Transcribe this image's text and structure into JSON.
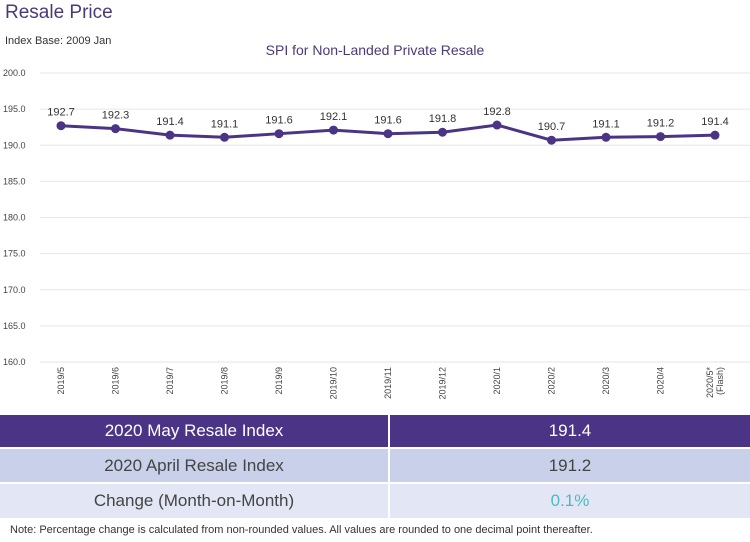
{
  "title": "Resale Price",
  "index_base": "Index Base: 2009 Jan",
  "chart_data": {
    "type": "line",
    "title": "SPI for Non-Landed Private Resale",
    "categories": [
      "2019/5",
      "2019/6",
      "2019/7",
      "2019/8",
      "2019/9",
      "2019/10",
      "2019/11",
      "2019/12",
      "2020/1",
      "2020/2",
      "2020/3",
      "2020/4",
      "2020/5* (Flash)"
    ],
    "values": [
      192.7,
      192.3,
      191.4,
      191.1,
      191.6,
      192.1,
      191.6,
      191.8,
      192.8,
      190.7,
      191.1,
      191.2,
      191.4
    ],
    "ylim": [
      160,
      200
    ],
    "yticks": [
      "160.0",
      "165.0",
      "170.0",
      "175.0",
      "180.0",
      "185.0",
      "190.0",
      "195.0",
      "200.0"
    ],
    "grid": true,
    "color": "#4b3486"
  },
  "table": [
    {
      "label": "2020 May Resale Index",
      "value": "191.4"
    },
    {
      "label": "2020 April Resale Index",
      "value": "191.2"
    },
    {
      "label": "Change (Month-on-Month)",
      "value": "0.1%"
    }
  ],
  "colors": {
    "header": "#4b3486",
    "row2": "#c9d0ea",
    "row3": "#e3e7f5",
    "change": "#4fb8c4"
  },
  "note": "Note: Percentage change is calculated from non-rounded values.  All values are rounded to one decimal point thereafter."
}
